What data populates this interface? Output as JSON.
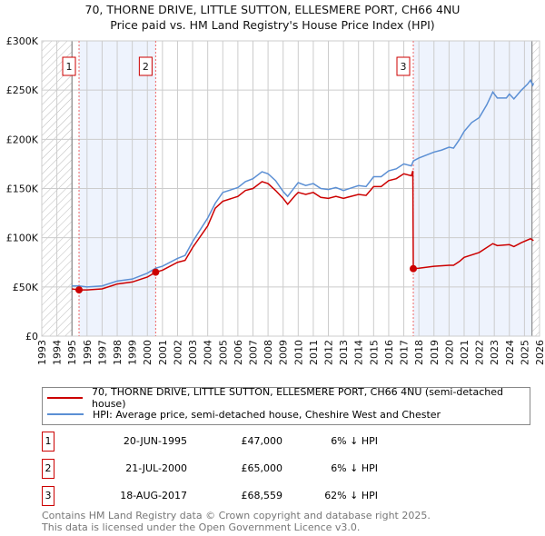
{
  "chart_data": {
    "type": "line",
    "title": "70, THORNE DRIVE, LITTLE SUTTON, ELLESMERE PORT, CH66 4NU",
    "subtitle": "Price paid vs. HM Land Registry's House Price Index (HPI)",
    "xlim": [
      1993,
      2026
    ],
    "ylim": [
      0,
      300000
    ],
    "yticks": [
      {
        "v": 0,
        "label": "£0"
      },
      {
        "v": 50000,
        "label": "£50K"
      },
      {
        "v": 100000,
        "label": "£100K"
      },
      {
        "v": 150000,
        "label": "£150K"
      },
      {
        "v": 200000,
        "label": "£200K"
      },
      {
        "v": 250000,
        "label": "£250K"
      },
      {
        "v": 300000,
        "label": "£300K"
      }
    ],
    "xticks": [
      "1993",
      "1994",
      "1995",
      "1996",
      "1997",
      "1998",
      "1999",
      "2000",
      "2001",
      "2002",
      "2003",
      "2004",
      "2005",
      "2006",
      "2007",
      "2008",
      "2009",
      "2010",
      "2011",
      "2012",
      "2013",
      "2014",
      "2015",
      "2016",
      "2017",
      "2018",
      "2019",
      "2020",
      "2021",
      "2022",
      "2023",
      "2024",
      "2025",
      "2026"
    ],
    "grid": true,
    "series": [
      {
        "name": "70, THORNE DRIVE, LITTLE SUTTON, ELLESMERE PORT, CH66 4NU (semi-detached house)",
        "color": "#cc0000",
        "x": [
          1995.0,
          1995.47,
          1996,
          1997,
          1998,
          1999,
          2000,
          2000.55,
          2001,
          2002,
          2002.5,
          2003,
          2004,
          2004.5,
          2005,
          2006,
          2006.5,
          2007,
          2007.6,
          2008,
          2008.5,
          2009,
          2009.3,
          2009.8,
          2010,
          2010.5,
          2011,
          2011.5,
          2012,
          2012.5,
          2013,
          2014,
          2014.5,
          2015,
          2015.5,
          2016,
          2016.5,
          2017,
          2017.5,
          2017.6,
          2017.63,
          2018,
          2019,
          2020,
          2020.3,
          2020.7,
          2021,
          2022,
          2022.9,
          2023.2,
          2024,
          2024.3,
          2024.8,
          2025.4,
          2025.6
        ],
        "y": [
          48000,
          47000,
          47000,
          48000,
          53000,
          55000,
          60000,
          65000,
          67000,
          75000,
          77000,
          90000,
          112000,
          130000,
          137000,
          142000,
          148000,
          150000,
          157000,
          155000,
          148000,
          140000,
          134000,
          143000,
          146000,
          144000,
          146000,
          141000,
          140000,
          142000,
          140000,
          144000,
          143000,
          152000,
          152000,
          158000,
          160000,
          165000,
          163000,
          168000,
          68559,
          69000,
          71000,
          72000,
          72000,
          76000,
          80000,
          85000,
          94000,
          92000,
          93000,
          91000,
          95000,
          99000,
          97000
        ]
      },
      {
        "name": "HPI: Average price, semi-detached house, Cheshire West and Chester",
        "color": "#5b8fd4",
        "x": [
          1995.0,
          1995.47,
          1996,
          1997,
          1998,
          1999,
          2000,
          2000.55,
          2001,
          2002,
          2002.5,
          2003,
          2004,
          2004.5,
          2005,
          2006,
          2006.5,
          2007,
          2007.6,
          2008,
          2008.5,
          2009,
          2009.3,
          2009.8,
          2010,
          2010.5,
          2011,
          2011.5,
          2012,
          2012.5,
          2013,
          2014,
          2014.5,
          2015,
          2015.5,
          2016,
          2016.5,
          2017,
          2017.5,
          2017.63,
          2018,
          2019,
          2019.5,
          2020,
          2020.3,
          2020.7,
          2021,
          2021.5,
          2022,
          2022.5,
          2022.9,
          2023.2,
          2023.8,
          2024,
          2024.3,
          2024.8,
          2025.2,
          2025.4,
          2025.55,
          2025.6
        ],
        "y": [
          51000,
          51000,
          50000,
          51000,
          56000,
          58000,
          64000,
          69000,
          71000,
          79000,
          82000,
          96000,
          120000,
          135000,
          146000,
          151000,
          157000,
          160000,
          167000,
          165000,
          158000,
          147000,
          142000,
          152000,
          156000,
          153000,
          155000,
          150000,
          149000,
          151000,
          148000,
          153000,
          152000,
          162000,
          162000,
          168000,
          170000,
          175000,
          173000,
          178000,
          181000,
          187000,
          189000,
          192000,
          191000,
          200000,
          208000,
          217000,
          222000,
          235000,
          248000,
          242000,
          242000,
          246000,
          241000,
          250000,
          256000,
          260000,
          255000,
          257000
        ]
      }
    ],
    "sales": [
      {
        "n": "1",
        "x": 1995.47,
        "y": 47000,
        "date": "20-JUN-1995",
        "price": "£47,000",
        "hpi": "6% ↓ HPI"
      },
      {
        "n": "2",
        "x": 2000.55,
        "y": 65000,
        "date": "21-JUL-2000",
        "price": "£65,000",
        "hpi": "6% ↓ HPI"
      },
      {
        "n": "3",
        "x": 2017.63,
        "y": 68559,
        "date": "18-AUG-2017",
        "price": "£68,559",
        "hpi": "62% ↓ HPI"
      }
    ],
    "shaded": [
      [
        1995.47,
        2000.55
      ],
      [
        2017.63,
        2025.5
      ]
    ],
    "hatched": [
      [
        1993,
        1995
      ],
      [
        2025.5,
        2026
      ]
    ],
    "legend_placement": "bottom"
  },
  "footer": {
    "line1": "Contains HM Land Registry data © Crown copyright and database right 2025.",
    "line2": "This data is licensed under the Open Government Licence v3.0."
  }
}
